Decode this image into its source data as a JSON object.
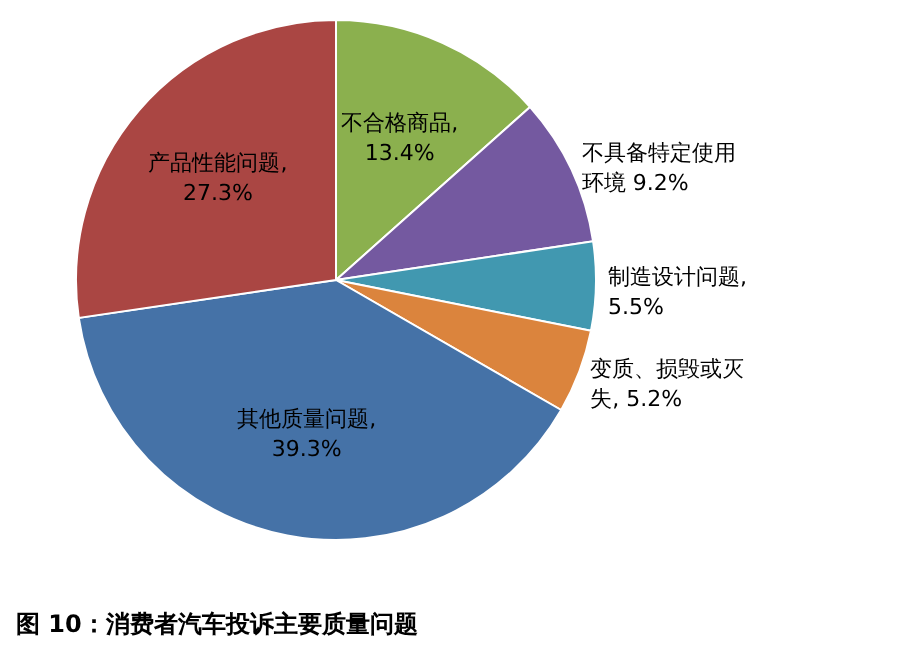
{
  "chart_data": {
    "type": "pie",
    "title": "图 10：消费者汽车投诉主要质量问题",
    "categories": [
      "不合格商品",
      "不具备特定使用环境",
      "制造设计问题",
      "变质、损毁或灭失",
      "其他质量问题",
      "产品性能问题"
    ],
    "values": [
      13.4,
      9.2,
      5.5,
      5.2,
      39.3,
      27.3
    ],
    "value_labels": [
      ", 13.4%",
      " 9.2%",
      ", 5.5%",
      ", 5.2%",
      ", 39.3%",
      ", 27.3%"
    ],
    "colors": [
      "#8bb04e",
      "#7459a0",
      "#4198b0",
      "#db843d",
      "#4572a7",
      "#aa4643"
    ]
  }
}
